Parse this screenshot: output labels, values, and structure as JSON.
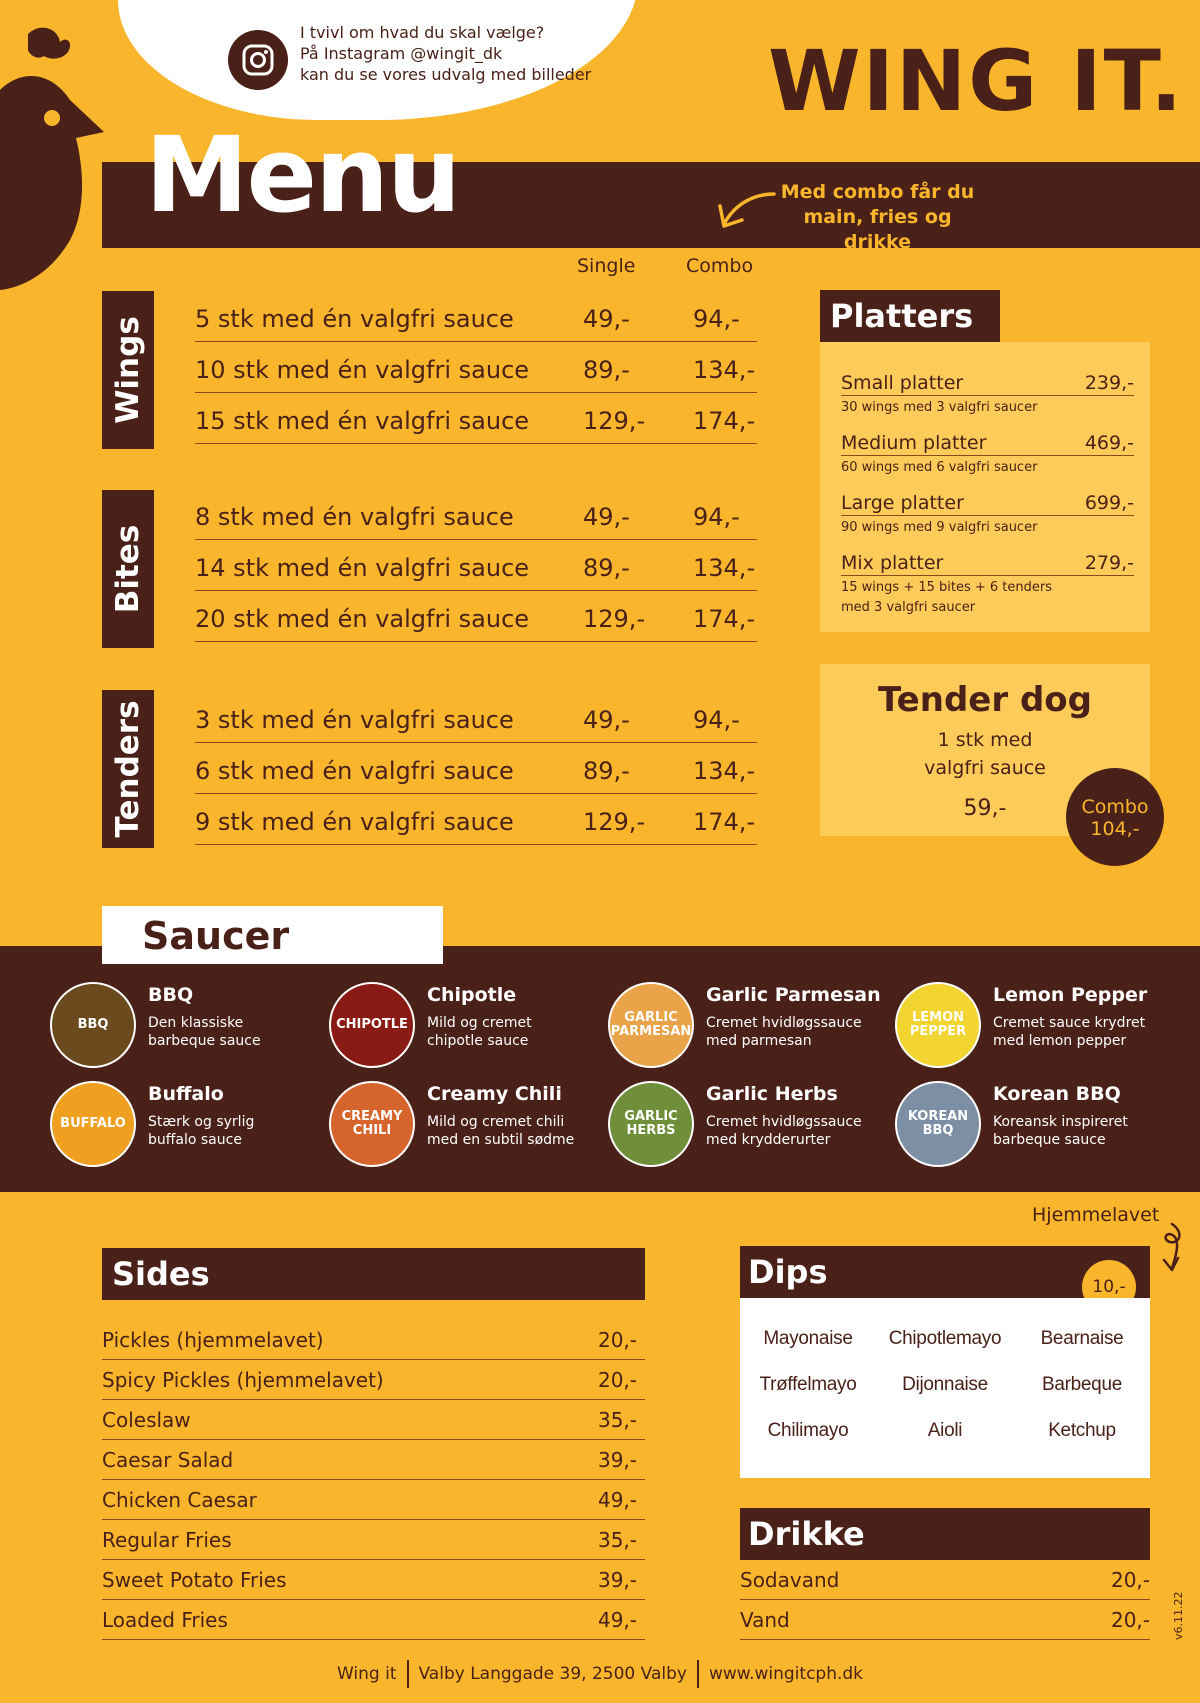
{
  "instagram": {
    "line1": "I tvivl om hvad du skal vælge?",
    "line2": "På Instagram @wingit_dk",
    "line3": "kan du se vores udvalg med billeder"
  },
  "logo": "WING IT.",
  "menu_title": "Menu",
  "combo_note": {
    "line1": "Med combo får du",
    "line2": "main, fries og drikke"
  },
  "columns": {
    "single": "Single",
    "combo": "Combo"
  },
  "sections": [
    {
      "label": "Wings",
      "rows": [
        {
          "item": "5 stk med én valgfri sauce",
          "single": "49,-",
          "combo": "94,-"
        },
        {
          "item": "10 stk med én valgfri sauce",
          "single": "89,-",
          "combo": "134,-"
        },
        {
          "item": "15 stk med én valgfri sauce",
          "single": "129,-",
          "combo": "174,-"
        }
      ]
    },
    {
      "label": "Bites",
      "rows": [
        {
          "item": "8 stk med én valgfri sauce",
          "single": "49,-",
          "combo": "94,-"
        },
        {
          "item": "14 stk med én valgfri sauce",
          "single": "89,-",
          "combo": "134,-"
        },
        {
          "item": "20 stk med én valgfri sauce",
          "single": "129,-",
          "combo": "174,-"
        }
      ]
    },
    {
      "label": "Tenders",
      "rows": [
        {
          "item": "3 stk med én valgfri sauce",
          "single": "49,-",
          "combo": "94,-"
        },
        {
          "item": "6 stk med én valgfri sauce",
          "single": "89,-",
          "combo": "134,-"
        },
        {
          "item": "9 stk med én valgfri sauce",
          "single": "129,-",
          "combo": "174,-"
        }
      ]
    }
  ],
  "platters": {
    "title": "Platters",
    "items": [
      {
        "name": "Small platter",
        "price": "239,-",
        "desc1": "30 wings med 3 valgfri saucer",
        "desc2": ""
      },
      {
        "name": "Medium platter",
        "price": "469,-",
        "desc1": "60 wings med 6 valgfri saucer",
        "desc2": ""
      },
      {
        "name": "Large platter",
        "price": "699,-",
        "desc1": "90 wings med 9 valgfri saucer",
        "desc2": ""
      },
      {
        "name": "Mix platter",
        "price": "279,-",
        "desc1": "15 wings + 15 bites + 6 tenders",
        "desc2": "med 3 valgfri saucer"
      }
    ]
  },
  "tender_dog": {
    "title": "Tender dog",
    "sub1": "1 stk med",
    "sub2": "valgfri sauce",
    "price": "59,-",
    "combo_label": "Combo",
    "combo_price": "104,-"
  },
  "saucer": {
    "title": "Saucer",
    "items": [
      {
        "name": "BBQ",
        "desc1": "Den klassiske",
        "desc2": "barbeque sauce",
        "icon_text": "BBQ",
        "color": "#6b4a1e"
      },
      {
        "name": "Chipotle",
        "desc1": "Mild og cremet",
        "desc2": "chipotle sauce",
        "icon_text": "CHIPOTLE",
        "color": "#8a1a14"
      },
      {
        "name": "Garlic Parmesan",
        "desc1": "Cremet hvidløgssauce",
        "desc2": "med parmesan",
        "icon_text": "GARLIC PARMESAN",
        "color": "#e9a44a"
      },
      {
        "name": "Lemon Pepper",
        "desc1": "Cremet sauce krydret",
        "desc2": "med lemon pepper",
        "icon_text": "LEMON PEPPER",
        "color": "#f3d531"
      },
      {
        "name": "Buffalo",
        "desc1": "Stærk og syrlig",
        "desc2": "buffalo sauce",
        "icon_text": "BUFFALO",
        "color": "#f0a020"
      },
      {
        "name": "Creamy Chili",
        "desc1": "Mild og cremet chili",
        "desc2": "med en subtil sødme",
        "icon_text": "CREAMY CHILI",
        "color": "#d5652c"
      },
      {
        "name": "Garlic Herbs",
        "desc1": "Cremet hvidløgssauce",
        "desc2": "med krydderurter",
        "icon_text": "GARLIC HERBS",
        "color": "#6f8f3a"
      },
      {
        "name": "Korean BBQ",
        "desc1": "Koreansk inspireret",
        "desc2": "barbeque sauce",
        "icon_text": "KOREAN BBQ",
        "color": "#7c8fa4"
      }
    ]
  },
  "sides": {
    "title": "Sides",
    "items": [
      {
        "name": "Pickles (hjemmelavet)",
        "price": "20,-"
      },
      {
        "name": "Spicy Pickles (hjemmelavet)",
        "price": "20,-"
      },
      {
        "name": "Coleslaw",
        "price": "35,-"
      },
      {
        "name": "Caesar Salad",
        "price": "39,-"
      },
      {
        "name": "Chicken Caesar",
        "price": "49,-"
      },
      {
        "name": "Regular Fries",
        "price": "35,-"
      },
      {
        "name": "Sweet Potato Fries",
        "price": "39,-"
      },
      {
        "name": "Loaded Fries",
        "price": "49,-"
      }
    ]
  },
  "dips": {
    "note": "Hjemmelavet",
    "title": "Dips",
    "price": "10,-",
    "items": [
      "Mayonaise",
      "Chipotlemayo",
      "Bearnaise",
      "Trøffelmayo",
      "Dijonnaise",
      "Barbeque",
      "Chilimayo",
      "Aioli",
      "Ketchup"
    ]
  },
  "drikke": {
    "title": "Drikke",
    "items": [
      {
        "name": "Sodavand",
        "price": "20,-"
      },
      {
        "name": "Vand",
        "price": "20,-"
      }
    ]
  },
  "footer": {
    "name": "Wing it",
    "address": "Valby Langgade 39, 2500 Valby",
    "web": "www.wingitcph.dk"
  },
  "version": "v6.11.22",
  "colors": {
    "background": "#f9b62c",
    "brown": "#4a2118",
    "light": "#fccb5a"
  }
}
